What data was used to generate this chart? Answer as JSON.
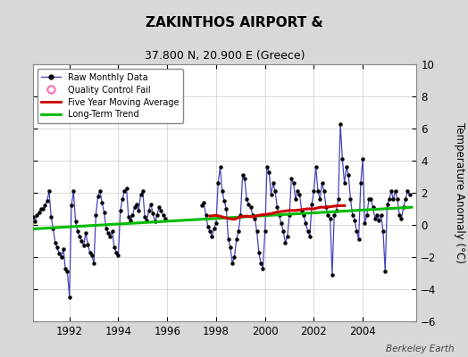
{
  "title": "ZAKINTHOS AIRPORT &",
  "subtitle": "37.800 N, 20.900 E (Greece)",
  "ylabel": "Temperature Anomaly (°C)",
  "attribution": "Berkeley Earth",
  "ylim": [
    -6,
    10
  ],
  "yticks": [
    -6,
    -4,
    -2,
    0,
    2,
    4,
    6,
    8,
    10
  ],
  "xlim_start": 1990.5,
  "xlim_end": 2006.2,
  "xticks": [
    1992,
    1994,
    1996,
    1998,
    2000,
    2002,
    2004
  ],
  "bg_color": "#d8d8d8",
  "plot_bg_color": "#ffffff",
  "raw_line_color": "#4444bb",
  "raw_dot_color": "#000000",
  "moving_avg_color": "#cc0000",
  "trend_color": "#00bb00",
  "raw_data_x": [
    1990.5,
    1990.583,
    1990.667,
    1990.75,
    1990.833,
    1990.917,
    1991.0,
    1991.083,
    1991.167,
    1991.25,
    1991.333,
    1991.417,
    1991.5,
    1991.583,
    1991.667,
    1991.75,
    1991.833,
    1991.917,
    1992.0,
    1992.083,
    1992.167,
    1992.25,
    1992.333,
    1992.417,
    1992.5,
    1992.583,
    1992.667,
    1992.75,
    1992.833,
    1992.917,
    1993.0,
    1993.083,
    1993.167,
    1993.25,
    1993.333,
    1993.417,
    1993.5,
    1993.583,
    1993.667,
    1993.75,
    1993.833,
    1993.917,
    1994.0,
    1994.083,
    1994.167,
    1994.25,
    1994.333,
    1994.417,
    1994.5,
    1994.583,
    1994.667,
    1994.75,
    1994.833,
    1994.917,
    1995.0,
    1995.083,
    1995.167,
    1995.25,
    1995.333,
    1995.417,
    1995.5,
    1995.583,
    1995.667,
    1995.75,
    1995.833,
    1995.917,
    1997.417,
    1997.5,
    1997.583,
    1997.667,
    1997.75,
    1997.833,
    1997.917,
    1998.0,
    1998.083,
    1998.167,
    1998.25,
    1998.333,
    1998.417,
    1998.5,
    1998.583,
    1998.667,
    1998.75,
    1998.833,
    1998.917,
    1999.0,
    1999.083,
    1999.167,
    1999.25,
    1999.333,
    1999.417,
    1999.5,
    1999.583,
    1999.667,
    1999.75,
    1999.833,
    1999.917,
    2000.0,
    2000.083,
    2000.167,
    2000.25,
    2000.333,
    2000.417,
    2000.5,
    2000.583,
    2000.667,
    2000.75,
    2000.833,
    2000.917,
    2001.0,
    2001.083,
    2001.167,
    2001.25,
    2001.333,
    2001.417,
    2001.5,
    2001.583,
    2001.667,
    2001.75,
    2001.833,
    2001.917,
    2002.0,
    2002.083,
    2002.167,
    2002.25,
    2002.333,
    2002.417,
    2002.5,
    2002.583,
    2002.667,
    2002.75,
    2002.833,
    2002.917,
    2003.0,
    2003.083,
    2003.167,
    2003.25,
    2003.333,
    2003.417,
    2003.5,
    2003.583,
    2003.667,
    2003.75,
    2003.833,
    2003.917,
    2004.0,
    2004.083,
    2004.167,
    2004.25,
    2004.333,
    2004.417,
    2004.5,
    2004.583,
    2004.667,
    2004.75,
    2004.833,
    2004.917,
    2005.0,
    2005.083,
    2005.167,
    2005.25,
    2005.333,
    2005.417,
    2005.5,
    2005.583,
    2005.667,
    2005.75,
    2005.833,
    2005.917
  ],
  "raw_data_y": [
    0.5,
    0.2,
    0.6,
    0.8,
    1.0,
    1.0,
    1.2,
    1.5,
    2.1,
    0.5,
    -0.2,
    -1.1,
    -1.4,
    -1.8,
    -2.0,
    -1.5,
    -2.7,
    -2.9,
    -4.5,
    1.2,
    2.1,
    0.2,
    -0.4,
    -0.7,
    -1.0,
    -1.3,
    -0.5,
    -1.2,
    -1.7,
    -1.9,
    -2.4,
    0.6,
    1.8,
    2.1,
    1.4,
    0.8,
    -0.2,
    -0.5,
    -0.7,
    -0.4,
    -1.4,
    -1.7,
    -1.9,
    0.9,
    1.6,
    2.1,
    2.3,
    0.5,
    0.3,
    0.6,
    1.1,
    1.3,
    0.9,
    1.9,
    2.1,
    0.5,
    0.3,
    0.9,
    1.3,
    0.7,
    0.2,
    0.6,
    1.1,
    0.9,
    0.6,
    0.4,
    1.2,
    1.4,
    0.6,
    -0.1,
    -0.4,
    -0.7,
    -0.2,
    0.1,
    2.6,
    3.6,
    2.1,
    1.5,
    1.0,
    -0.9,
    -1.4,
    -2.4,
    -2.0,
    -0.9,
    -0.4,
    0.6,
    3.1,
    2.9,
    1.6,
    1.3,
    1.1,
    0.6,
    0.4,
    -0.4,
    -1.7,
    -2.4,
    -2.7,
    -0.4,
    3.6,
    3.3,
    1.9,
    2.6,
    2.1,
    1.1,
    0.6,
    0.1,
    -0.4,
    -1.1,
    -0.7,
    0.6,
    2.9,
    2.6,
    1.6,
    2.1,
    1.9,
    0.9,
    0.6,
    0.1,
    -0.4,
    -0.7,
    1.3,
    2.1,
    3.6,
    2.1,
    1.6,
    2.6,
    2.1,
    1.1,
    0.6,
    0.4,
    -3.1,
    0.6,
    0.9,
    1.6,
    6.3,
    4.1,
    2.6,
    3.6,
    3.1,
    1.6,
    0.6,
    0.3,
    -0.4,
    -0.9,
    2.6,
    4.1,
    0.1,
    0.6,
    1.6,
    1.6,
    1.1,
    0.4,
    0.6,
    0.3,
    0.6,
    -0.4,
    -2.9,
    1.3,
    1.6,
    2.1,
    1.6,
    2.1,
    1.6,
    0.6,
    0.4,
    1.1,
    1.6,
    2.1,
    1.9
  ],
  "moving_avg_x": [
    1997.75,
    1998.0,
    1998.25,
    1998.5,
    1998.75,
    1999.0,
    1999.25,
    1999.5,
    1999.75,
    2000.0,
    2000.25,
    2000.5,
    2000.75,
    2001.0,
    2001.25,
    2001.5,
    2001.75,
    2002.0,
    2002.25,
    2002.5,
    2002.75,
    2003.0,
    2003.25
  ],
  "moving_avg_y": [
    0.55,
    0.6,
    0.5,
    0.4,
    0.35,
    0.5,
    0.55,
    0.5,
    0.6,
    0.65,
    0.7,
    0.8,
    0.85,
    0.9,
    0.9,
    0.95,
    1.0,
    1.0,
    1.1,
    1.1,
    1.15,
    1.2,
    1.2
  ],
  "trend_x": [
    1990.5,
    2006.0
  ],
  "trend_y": [
    -0.25,
    1.1
  ]
}
